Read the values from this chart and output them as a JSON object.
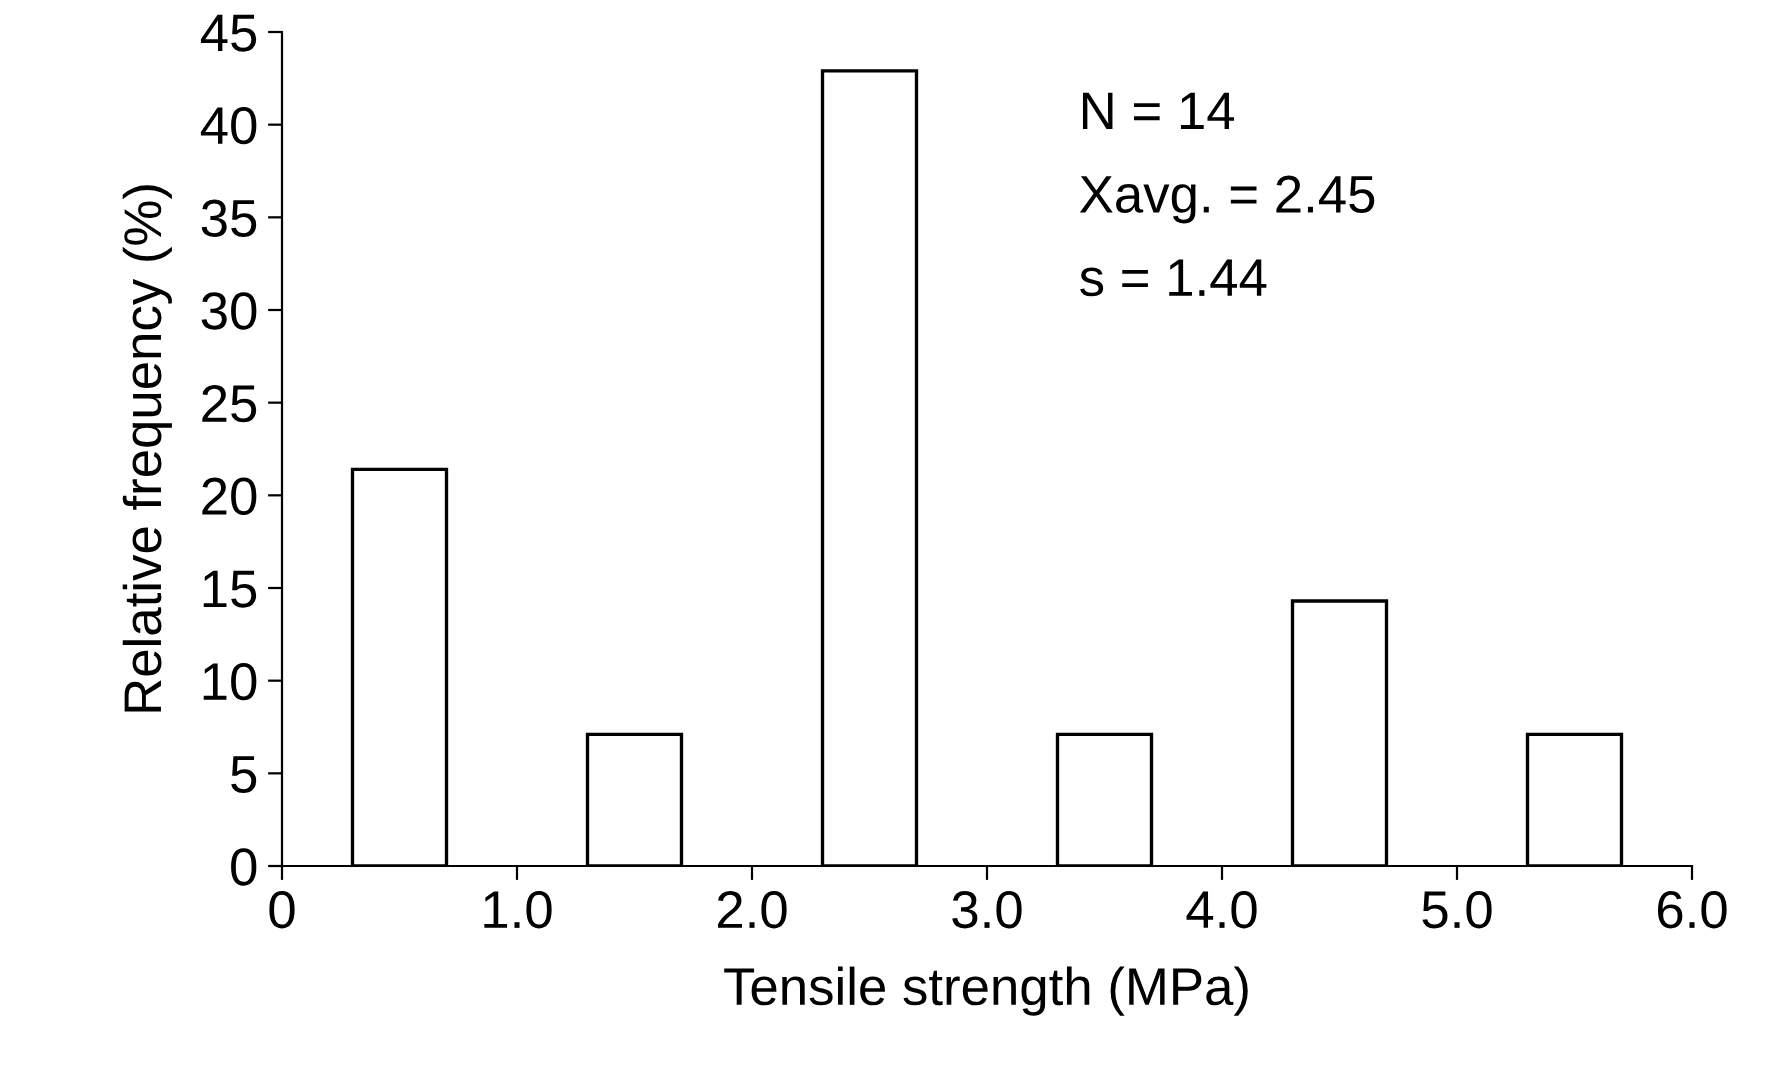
{
  "chart_data": {
    "type": "bar",
    "xlabel": "Tensile strength (MPa)",
    "ylabel": "Relative frequency (%)",
    "x": [
      0.5,
      1.5,
      2.5,
      3.5,
      4.5,
      5.5
    ],
    "values": [
      21.4,
      7.1,
      42.9,
      7.1,
      14.3,
      7.1
    ],
    "color": "#ffffff",
    "xlim": [
      0,
      6
    ],
    "xticks": [
      0,
      {
        "value": 1,
        "label": "1.0"
      },
      {
        "value": 2,
        "label": "2.0"
      },
      {
        "value": 3,
        "label": "3.0"
      },
      {
        "value": 4,
        "label": "4.0"
      },
      {
        "value": 5,
        "label": "5.0"
      },
      {
        "value": 6,
        "label": "6.0"
      }
    ],
    "ylim": [
      0,
      45
    ],
    "yticks": [
      0,
      5,
      10,
      15,
      20,
      25,
      30,
      35,
      40,
      45
    ],
    "grid": false,
    "legend": false,
    "annotations": [
      "N = 14",
      "Xavg. = 2.45",
      "s = 1.44"
    ]
  }
}
